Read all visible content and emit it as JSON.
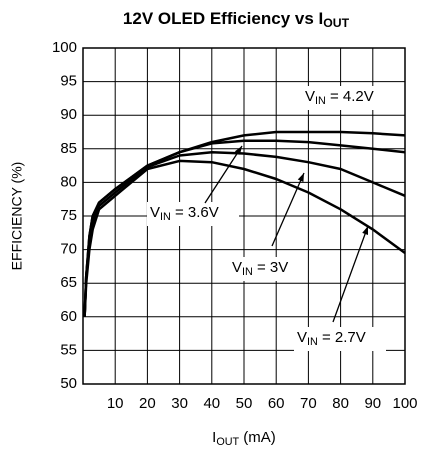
{
  "chart_data": {
    "type": "line",
    "title": {
      "text": "12V OLED Efficiency vs I",
      "sub": "OUT"
    },
    "xlabel": {
      "text": "I",
      "sub": "OUT",
      "rest": " (mA)"
    },
    "ylabel": "EFFICIENCY (%)",
    "x": [
      0.5,
      1,
      2,
      3,
      5,
      10,
      20,
      30,
      40,
      50,
      60,
      70,
      80,
      90,
      100
    ],
    "series": [
      {
        "label": {
          "text": "V",
          "sub": "IN",
          "rest": " = 4.2V"
        },
        "color": "#000000",
        "values": [
          60,
          66,
          72,
          75,
          77,
          79,
          82.5,
          84.5,
          86,
          87,
          87.5,
          87.5,
          87.5,
          87.3,
          87
        ]
      },
      {
        "label": {
          "text": "V",
          "sub": "IN",
          "rest": " = 3.6V"
        },
        "color": "#000000",
        "values": [
          60,
          66,
          72,
          75,
          77,
          79,
          82.5,
          84.5,
          85.8,
          86.2,
          86.2,
          86,
          85.5,
          85,
          84.5
        ]
      },
      {
        "label": {
          "text": "V",
          "sub": "IN",
          "rest": " = 3V"
        },
        "color": "#000000",
        "values": [
          60,
          66,
          71,
          74,
          76.5,
          78.5,
          82.3,
          84,
          84.5,
          84.3,
          83.8,
          83,
          82,
          80,
          78
        ]
      },
      {
        "label": {
          "text": "V",
          "sub": "IN",
          "rest": " = 2.7V"
        },
        "color": "#000000",
        "values": [
          60,
          65,
          70,
          73,
          76,
          78,
          82,
          83.2,
          83,
          82,
          80.5,
          78.5,
          76,
          73,
          69.5
        ]
      }
    ],
    "xlim": [
      0,
      100
    ],
    "xticks": [
      10,
      20,
      30,
      40,
      50,
      60,
      70,
      80,
      90,
      100
    ],
    "ylim": [
      50,
      100
    ],
    "yticks": [
      50,
      55,
      60,
      65,
      70,
      75,
      80,
      85,
      90,
      95,
      100
    ],
    "grid": true
  }
}
